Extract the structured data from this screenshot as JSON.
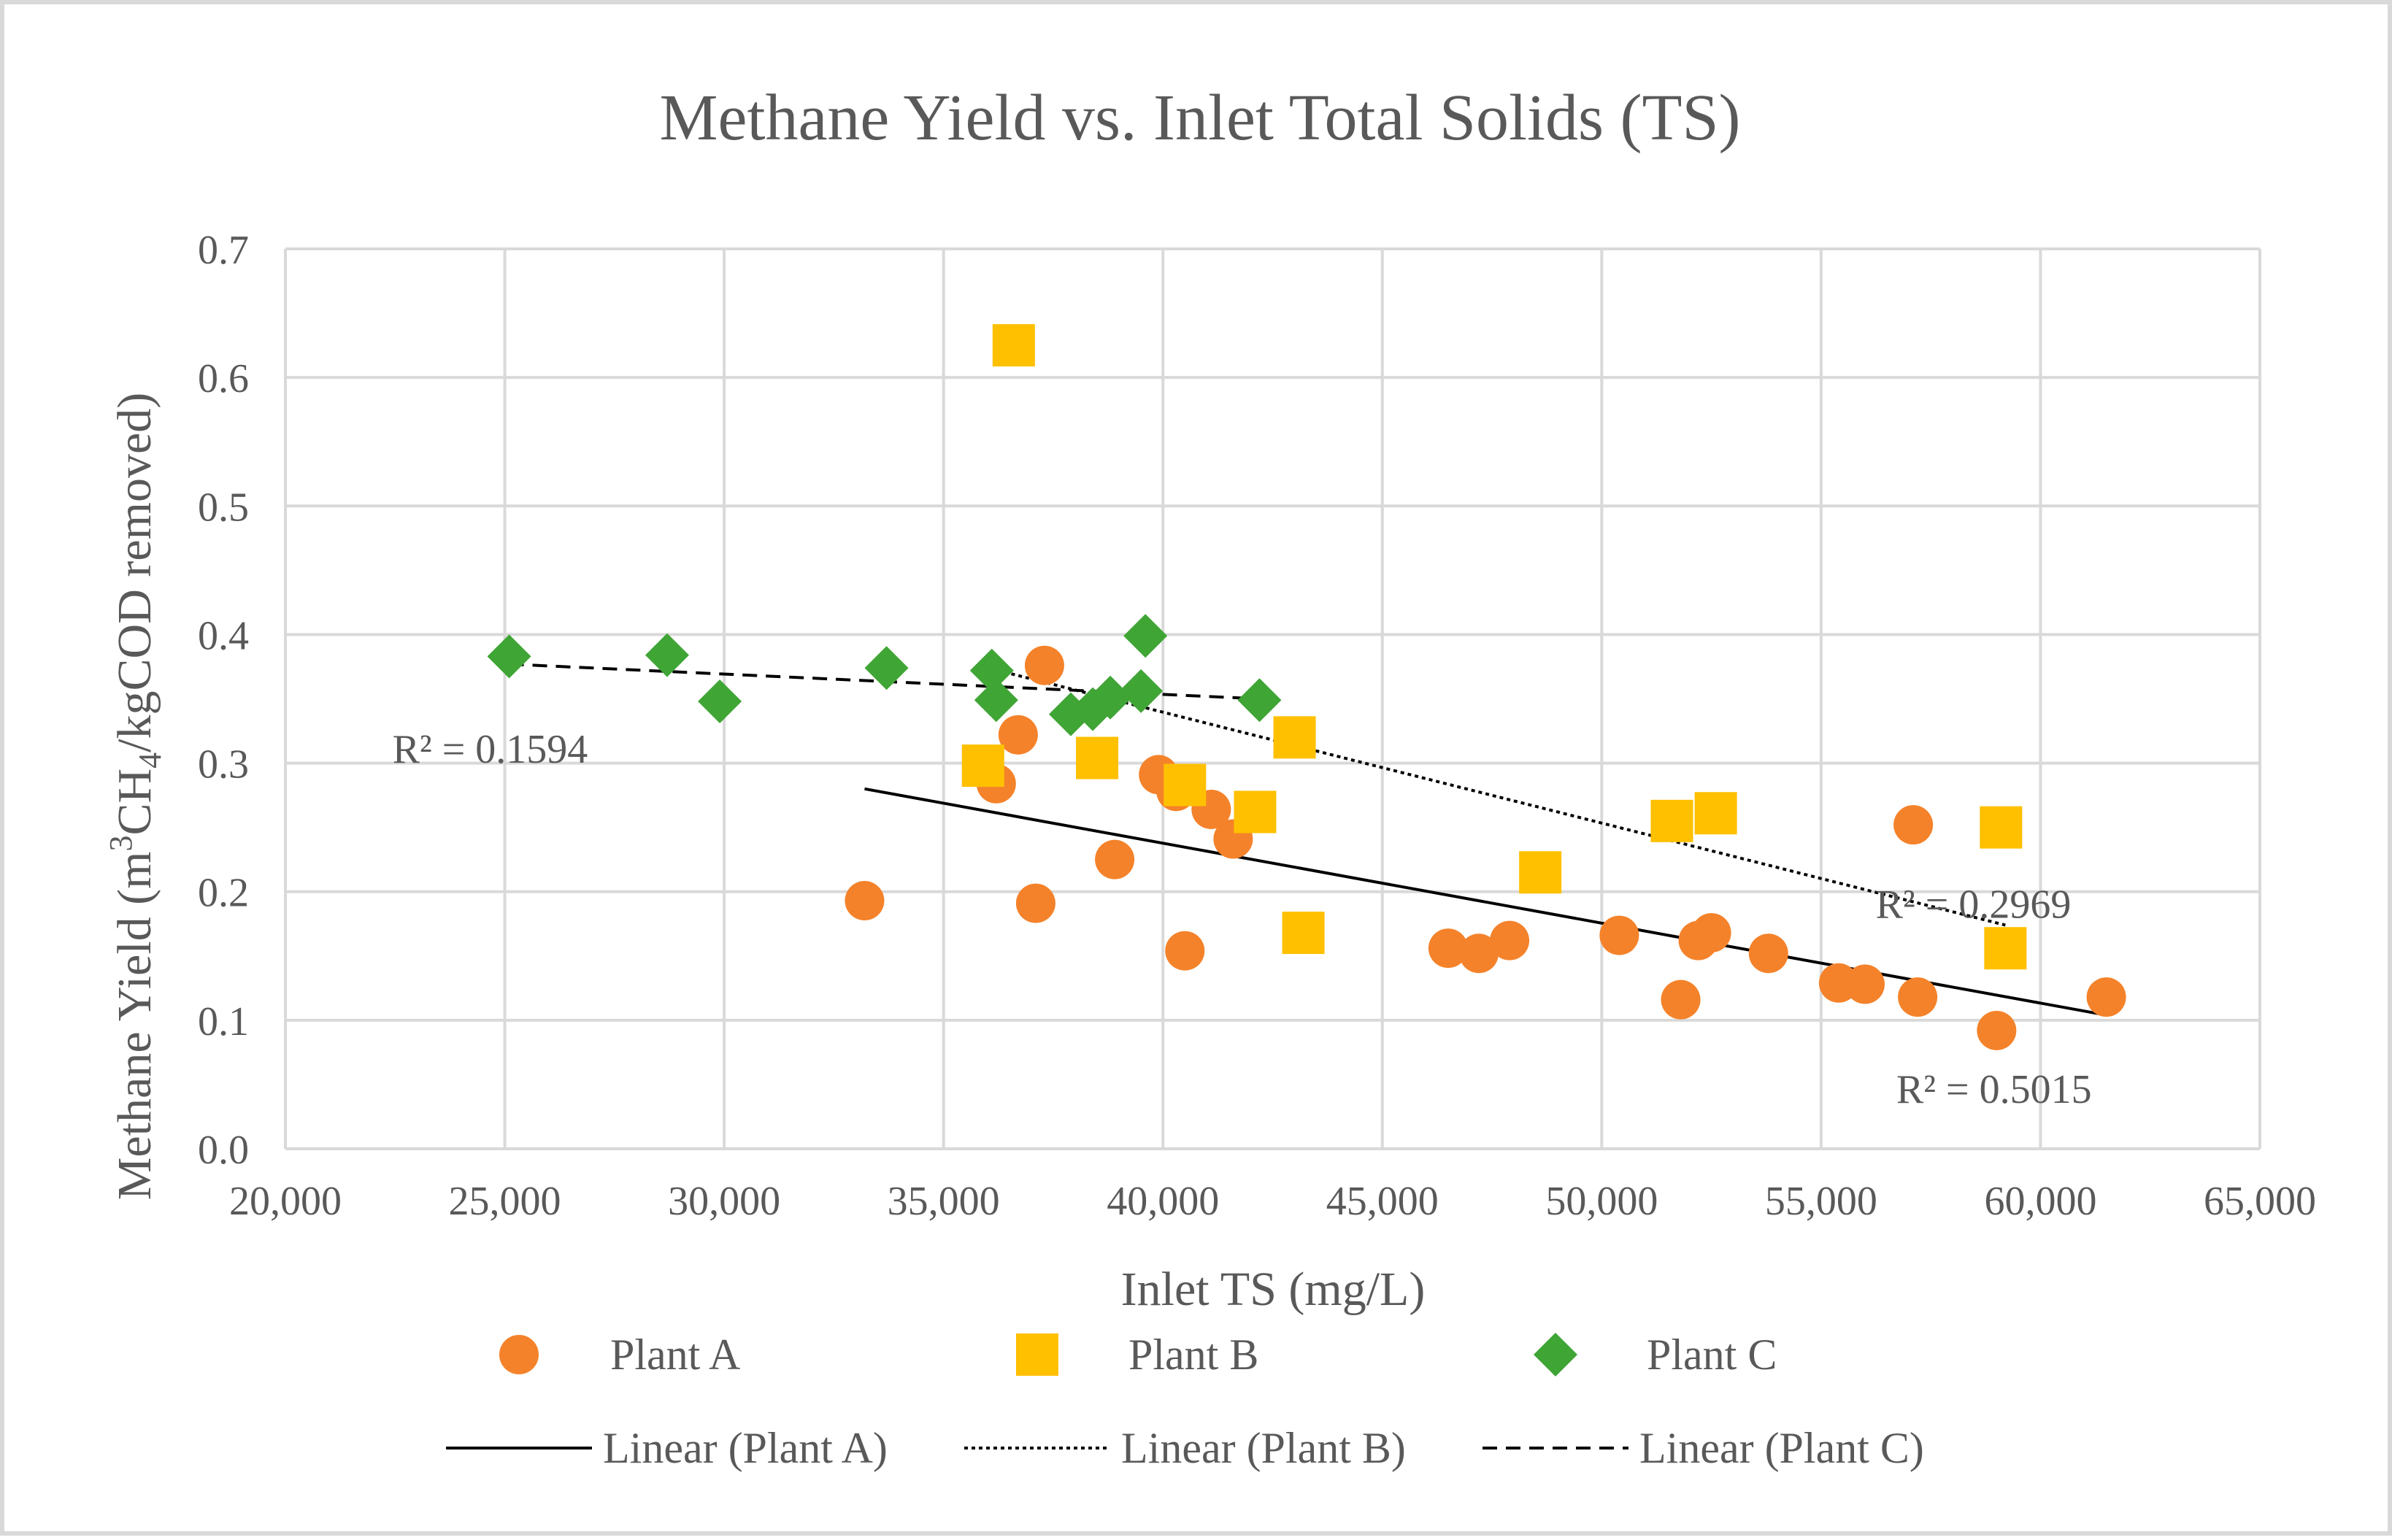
{
  "chart_data": {
    "type": "scatter",
    "title": "Methane Yield vs. Inlet Total Solids (TS)",
    "xlabel": "Inlet TS (mg/L)",
    "ylabel": {
      "prefix": "Methane Yield (m",
      "sup": "3",
      "mid": "CH",
      "sub": "4",
      "suffix": "/kgCOD removed)"
    },
    "xlim": [
      20000,
      65000
    ],
    "ylim": [
      0.0,
      0.7
    ],
    "x_ticks": [
      20000,
      25000,
      30000,
      35000,
      40000,
      45000,
      50000,
      55000,
      60000,
      65000
    ],
    "x_tick_labels": [
      "20,000",
      "25,000",
      "30,000",
      "35,000",
      "40,000",
      "45,000",
      "50,000",
      "55,000",
      "60,000",
      "65,000"
    ],
    "y_ticks": [
      0.0,
      0.1,
      0.2,
      0.3,
      0.4,
      0.5,
      0.6,
      0.7
    ],
    "y_tick_labels": [
      "0.0",
      "0.1",
      "0.2",
      "0.3",
      "0.4",
      "0.5",
      "0.6",
      "0.7"
    ],
    "grid": true,
    "legend_position": "bottom",
    "series": [
      {
        "name": "Plant A",
        "marker": "circle",
        "color": "#f4822a",
        "points": [
          [
            33200,
            0.193
          ],
          [
            36200,
            0.284
          ],
          [
            36700,
            0.322
          ],
          [
            37100,
            0.191
          ],
          [
            37300,
            0.376
          ],
          [
            38900,
            0.225
          ],
          [
            39900,
            0.291
          ],
          [
            40300,
            0.278
          ],
          [
            40500,
            0.154
          ],
          [
            41100,
            0.264
          ],
          [
            41600,
            0.241
          ],
          [
            46500,
            0.156
          ],
          [
            47200,
            0.152
          ],
          [
            47900,
            0.162
          ],
          [
            50400,
            0.166
          ],
          [
            51800,
            0.116
          ],
          [
            52200,
            0.162
          ],
          [
            52500,
            0.168
          ],
          [
            53800,
            0.152
          ],
          [
            55400,
            0.129
          ],
          [
            56000,
            0.128
          ],
          [
            57100,
            0.252
          ],
          [
            57200,
            0.118
          ],
          [
            59000,
            0.092
          ],
          [
            61500,
            0.118
          ]
        ]
      },
      {
        "name": "Plant B",
        "marker": "square",
        "color": "#ffc000",
        "points": [
          [
            36600,
            0.625
          ],
          [
            35900,
            0.298
          ],
          [
            38500,
            0.304
          ],
          [
            40500,
            0.283
          ],
          [
            42100,
            0.262
          ],
          [
            43000,
            0.32
          ],
          [
            43200,
            0.168
          ],
          [
            48600,
            0.215
          ],
          [
            51600,
            0.255
          ],
          [
            52600,
            0.261
          ],
          [
            59100,
            0.25
          ],
          [
            59200,
            0.156
          ]
        ]
      },
      {
        "name": "Plant C",
        "marker": "diamond",
        "color": "#3fa535",
        "points": [
          [
            25100,
            0.383
          ],
          [
            28700,
            0.384
          ],
          [
            29900,
            0.348
          ],
          [
            33700,
            0.374
          ],
          [
            36100,
            0.372
          ],
          [
            36200,
            0.349
          ],
          [
            37900,
            0.338
          ],
          [
            38400,
            0.342
          ],
          [
            38800,
            0.351
          ],
          [
            39500,
            0.356
          ],
          [
            39600,
            0.399
          ],
          [
            42200,
            0.349
          ]
        ]
      }
    ],
    "trendlines": [
      {
        "name": "Linear (Plant A)",
        "style": "solid",
        "from": [
          33200,
          0.28
        ],
        "to": [
          61500,
          0.104
        ],
        "r2_label": "R² = 0.5015"
      },
      {
        "name": "Linear (Plant B)",
        "style": "dotted",
        "from": [
          35900,
          0.375
        ],
        "to": [
          59200,
          0.174
        ],
        "r2_label": "R² = 0.2969"
      },
      {
        "name": "Linear (Plant C)",
        "style": "dashed",
        "from": [
          25100,
          0.377
        ],
        "to": [
          42200,
          0.35
        ],
        "r2_label": "R² = 0.1594"
      }
    ]
  }
}
